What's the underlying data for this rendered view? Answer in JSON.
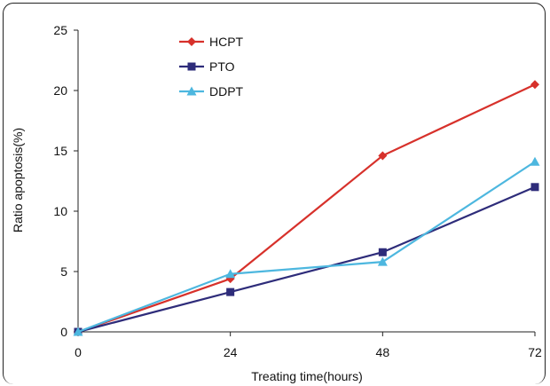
{
  "chart_data": {
    "type": "line",
    "title": "",
    "xlabel": "Treating time(hours)",
    "ylabel": "Ratio apoptosis(%)",
    "x": [
      0,
      24,
      48,
      72
    ],
    "x_ticks": [
      "0",
      "24",
      "48",
      "72"
    ],
    "y_ticks": [
      "0",
      "5",
      "10",
      "15",
      "20",
      "25"
    ],
    "xlim": [
      0,
      72
    ],
    "ylim": [
      0,
      25
    ],
    "grid": false,
    "legend_position": "top-left",
    "series": [
      {
        "name": "HCPT",
        "values": [
          0,
          4.4,
          14.6,
          20.5
        ],
        "color": "#d7312b",
        "marker": "diamond"
      },
      {
        "name": "PTO",
        "values": [
          0,
          3.3,
          6.6,
          12.0
        ],
        "color": "#2e2c7a",
        "marker": "square"
      },
      {
        "name": "DDPT",
        "values": [
          0,
          4.8,
          5.8,
          14.1
        ],
        "color": "#4db7df",
        "marker": "triangle"
      }
    ]
  }
}
